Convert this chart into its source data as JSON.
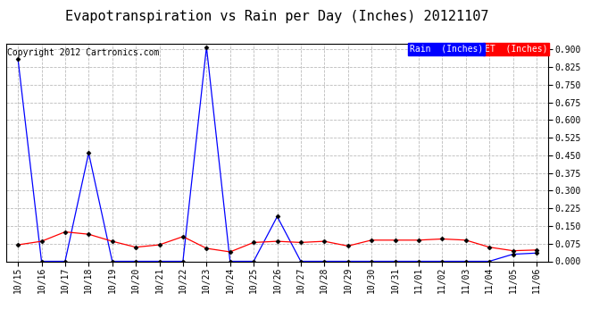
{
  "title": "Evapotranspiration vs Rain per Day (Inches) 20121107",
  "copyright": "Copyright 2012 Cartronics.com",
  "legend_rain": "Rain  (Inches)",
  "legend_et": "ET  (Inches)",
  "x_labels": [
    "10/15",
    "10/16",
    "10/17",
    "10/18",
    "10/19",
    "10/20",
    "10/21",
    "10/22",
    "10/23",
    "10/24",
    "10/25",
    "10/26",
    "10/27",
    "10/28",
    "10/29",
    "10/30",
    "10/31",
    "11/01",
    "11/02",
    "11/03",
    "11/04",
    "11/05",
    "11/06"
  ],
  "rain_values": [
    0.86,
    0.0,
    0.0,
    0.46,
    0.0,
    0.0,
    0.0,
    0.0,
    0.91,
    0.0,
    0.0,
    0.19,
    0.0,
    0.0,
    0.0,
    0.0,
    0.0,
    0.0,
    0.0,
    0.0,
    0.0,
    0.03,
    0.035
  ],
  "et_values": [
    0.07,
    0.085,
    0.125,
    0.115,
    0.085,
    0.06,
    0.07,
    0.105,
    0.055,
    0.04,
    0.08,
    0.085,
    0.08,
    0.085,
    0.065,
    0.09,
    0.09,
    0.09,
    0.095,
    0.09,
    0.06,
    0.045,
    0.048
  ],
  "rain_color": "#0000ff",
  "et_color": "#ff0000",
  "ylim": [
    0.0,
    0.925
  ],
  "yticks": [
    0.0,
    0.075,
    0.15,
    0.225,
    0.3,
    0.375,
    0.45,
    0.525,
    0.6,
    0.675,
    0.75,
    0.825,
    0.9
  ],
  "bg_color": "#ffffff",
  "grid_color": "#bbbbbb",
  "title_fontsize": 11,
  "copyright_fontsize": 7,
  "tick_fontsize": 7,
  "legend_bg_rain": "#0000ff",
  "legend_bg_et": "#ff0000",
  "legend_text_color": "#ffffff",
  "legend_fontsize": 7
}
